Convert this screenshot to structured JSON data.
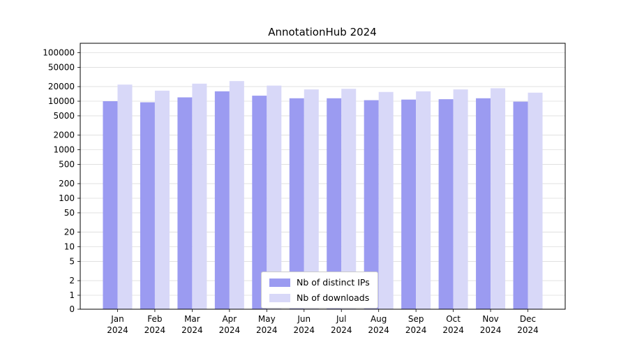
{
  "chart_data": {
    "type": "bar",
    "title": "AnnotationHub 2024",
    "xlabel": "",
    "ylabel": "",
    "yscale": "symlog",
    "ylim": [
      0,
      160000
    ],
    "grid": true,
    "legend_position": "lower center",
    "yticks": [
      0,
      1,
      2,
      5,
      10,
      20,
      50,
      100,
      200,
      500,
      1000,
      2000,
      5000,
      10000,
      20000,
      50000,
      100000
    ],
    "categories": [
      "Jan 2024",
      "Feb 2024",
      "Mar 2024",
      "Apr 2024",
      "May 2024",
      "Jun 2024",
      "Jul 2024",
      "Aug 2024",
      "Sep 2024",
      "Oct 2024",
      "Nov 2024",
      "Dec 2024"
    ],
    "series": [
      {
        "name": "Nb of distinct IPs",
        "color": "#9b9bf1",
        "values": [
          10000,
          9500,
          12000,
          16000,
          13000,
          11500,
          11500,
          10500,
          10800,
          11000,
          11500,
          9800
        ]
      },
      {
        "name": "Nb of downloads",
        "color": "#d8d8f8",
        "values": [
          22000,
          16500,
          23000,
          26000,
          21000,
          17500,
          18000,
          15500,
          16000,
          17500,
          18500,
          15000
        ]
      }
    ],
    "colors": {
      "grid": "#dcdcdc",
      "axis": "#000000",
      "legend_border": "#cccccc"
    }
  }
}
